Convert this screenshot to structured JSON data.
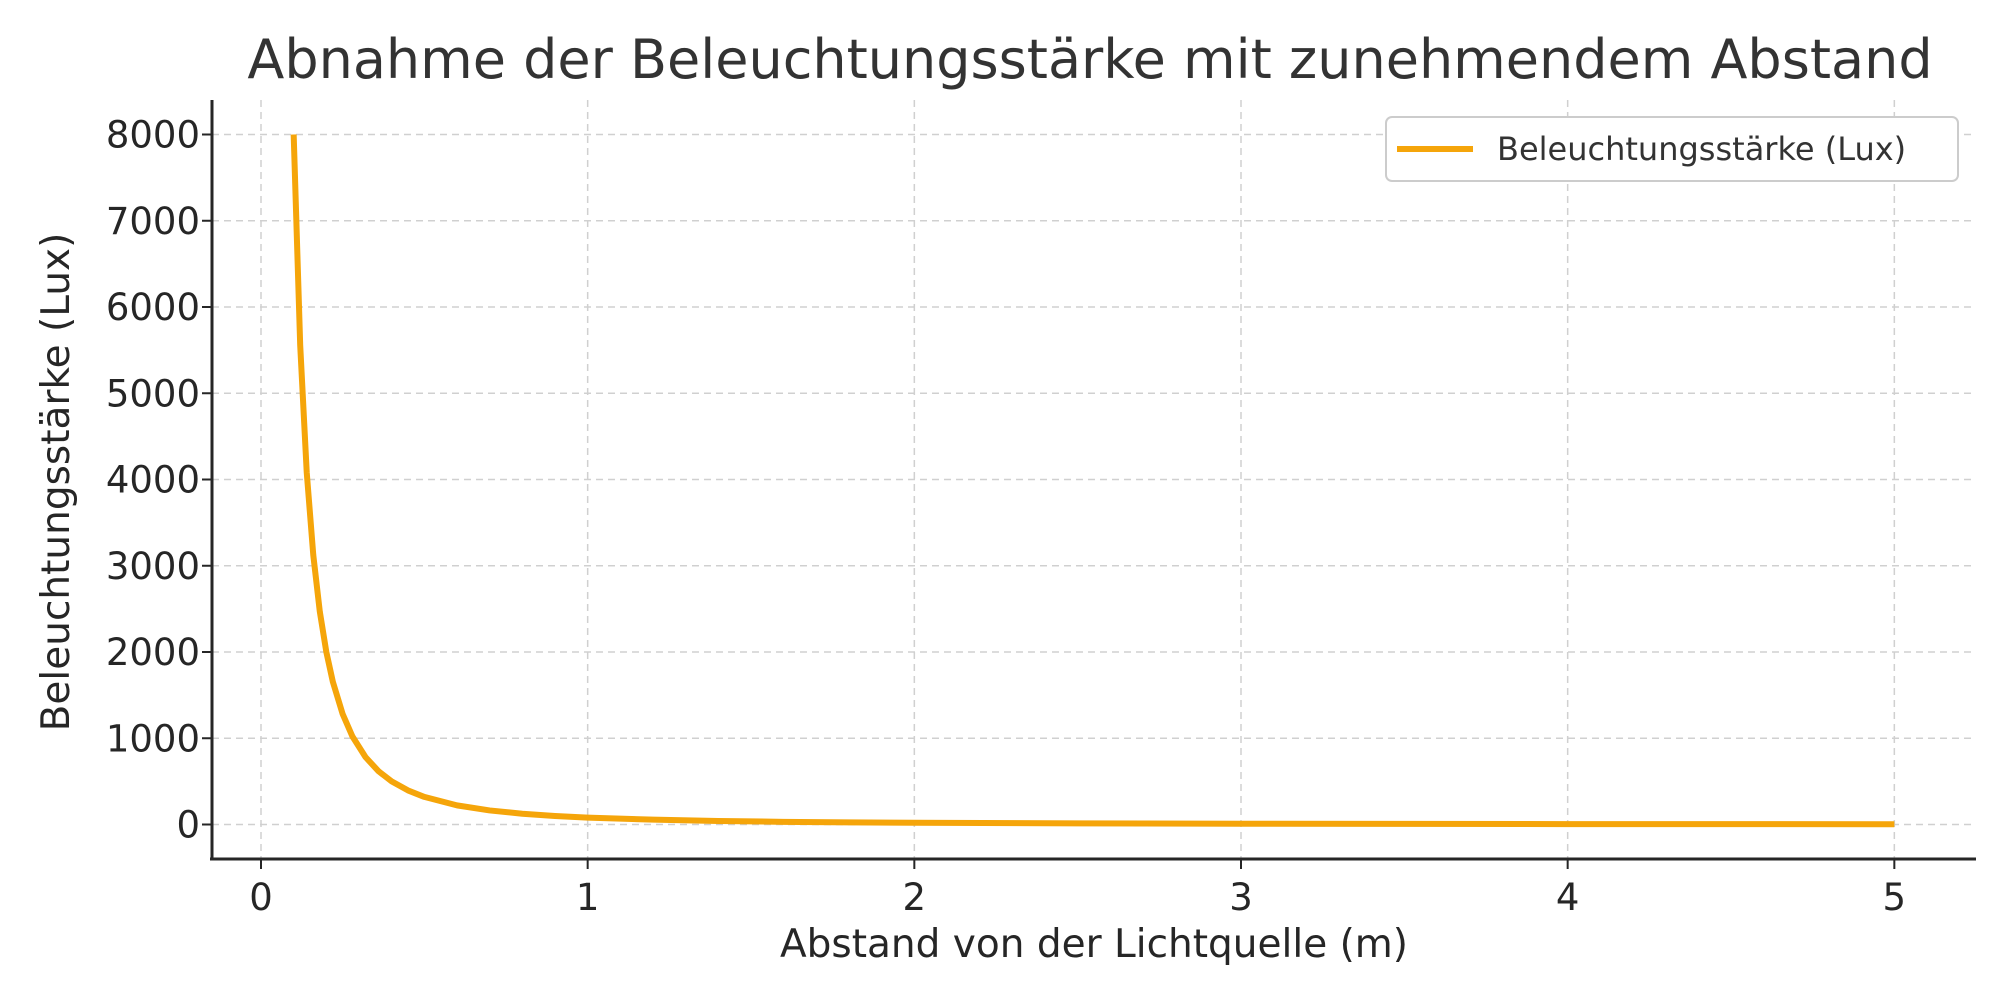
{
  "chart_data": {
    "type": "line",
    "title": "Abnahme der Beleuchtungsstärke mit zunehmendem Abstand",
    "xlabel": "Abstand von der Lichtquelle (m)",
    "ylabel": "Beleuchtungsstärke (Lux)",
    "xlim": [
      -0.15,
      5.25
    ],
    "ylim": [
      -400,
      8400
    ],
    "xticks": [
      0,
      1,
      2,
      3,
      4,
      5
    ],
    "yticks": [
      0,
      1000,
      2000,
      3000,
      4000,
      5000,
      6000,
      7000,
      8000
    ],
    "grid": true,
    "legend_position": "top-right",
    "series": [
      {
        "name": "Beleuchtungsstärke (Lux)",
        "color": "#F5A50A",
        "x": [
          0.1,
          0.12,
          0.14,
          0.16,
          0.18,
          0.2,
          0.22,
          0.25,
          0.28,
          0.32,
          0.36,
          0.4,
          0.45,
          0.5,
          0.6,
          0.7,
          0.8,
          0.9,
          1.0,
          1.2,
          1.4,
          1.6,
          1.8,
          2.0,
          2.5,
          3.0,
          3.5,
          4.0,
          4.5,
          5.0
        ],
        "y": [
          8000,
          5556,
          4082,
          3125,
          2469,
          2000,
          1653,
          1280,
          1020,
          781,
          617,
          500,
          395,
          320,
          222,
          163,
          125,
          99,
          80,
          56,
          41,
          31,
          25,
          20,
          13,
          9,
          7,
          5,
          4,
          3
        ]
      }
    ]
  }
}
